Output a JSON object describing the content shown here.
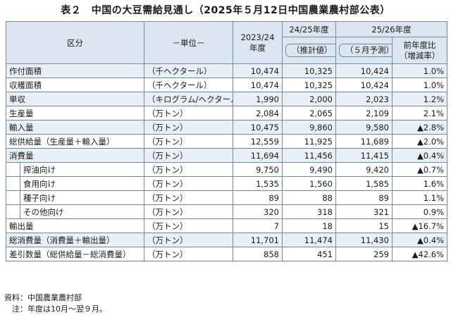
{
  "title": "表２　中国の大豆需給見通し（2025年５月12日中国農業農村部公表）",
  "header": {
    "item": "区分",
    "unit": "－単位－",
    "col_2023": "2023/24\n年度",
    "col_2024": "24/25年度",
    "col_2024_sub": "（推計値）",
    "col_2025": "25/26年度",
    "col_2025_sub": "（５月予測）",
    "col_change": "前年度比\n（増減率）"
  },
  "rows": [
    {
      "item": "作付面積",
      "unit": "（千ヘクタール）",
      "v1": "10,474",
      "v2": "10,325",
      "v3": "10,424",
      "chg": "1.0%",
      "indent": false
    },
    {
      "item": "収穫面積",
      "unit": "（千ヘクタール）",
      "v1": "10,474",
      "v2": "10,325",
      "v3": "10,424",
      "chg": "1.0%",
      "indent": false
    },
    {
      "item": "単収",
      "unit": "（キログラム/ヘクタール）",
      "v1": "1,990",
      "v2": "2,000",
      "v3": "2,023",
      "chg": "1.2%",
      "indent": false
    },
    {
      "item": "生産量",
      "unit": "（万トン）",
      "v1": "2,084",
      "v2": "2,065",
      "v3": "2,109",
      "chg": "2.1%",
      "indent": false
    },
    {
      "item": "輸入量",
      "unit": "（万トン）",
      "v1": "10,475",
      "v2": "9,860",
      "v3": "9,580",
      "chg": "▲2.8%",
      "indent": false
    },
    {
      "item": "総供給量（生産量＋輸入量）",
      "unit": "（万トン）",
      "v1": "12,559",
      "v2": "11,925",
      "v3": "11,689",
      "chg": "▲2.0%",
      "indent": false
    },
    {
      "item": "消費量",
      "unit": "（万トン）",
      "v1": "11,694",
      "v2": "11,456",
      "v3": "11,415",
      "chg": "▲0.4%",
      "indent": false
    },
    {
      "item": "搾油向け",
      "unit": "（万トン）",
      "v1": "9,750",
      "v2": "9,490",
      "v3": "9,420",
      "chg": "▲0.7%",
      "indent": true
    },
    {
      "item": "食用向け",
      "unit": "（万トン）",
      "v1": "1,535",
      "v2": "1,560",
      "v3": "1,585",
      "chg": "1.6%",
      "indent": true
    },
    {
      "item": "種子向け",
      "unit": "（万トン）",
      "v1": "89",
      "v2": "88",
      "v3": "89",
      "chg": "1.1%",
      "indent": true
    },
    {
      "item": "その他向け",
      "unit": "（万トン）",
      "v1": "320",
      "v2": "318",
      "v3": "321",
      "chg": "0.9%",
      "indent": true
    },
    {
      "item": "輸出量",
      "unit": "（万トン）",
      "v1": "7",
      "v2": "18",
      "v3": "15",
      "chg": "▲16.7%",
      "indent": false
    },
    {
      "item": "総消費量（消費量＋輸出量）",
      "unit": "（万トン）",
      "v1": "11,701",
      "v2": "11,474",
      "v3": "11,430",
      "chg": "▲0.4%",
      "indent": false
    },
    {
      "item": "差引数量（総供給量－総消費量）",
      "unit": "（万トン）",
      "v1": "858",
      "v2": "451",
      "v3": "259",
      "chg": "▲42.6%",
      "indent": false
    }
  ],
  "notes": {
    "source": "資料：中国農業農村部",
    "note": "　注：年度は10月～翌９月。"
  }
}
